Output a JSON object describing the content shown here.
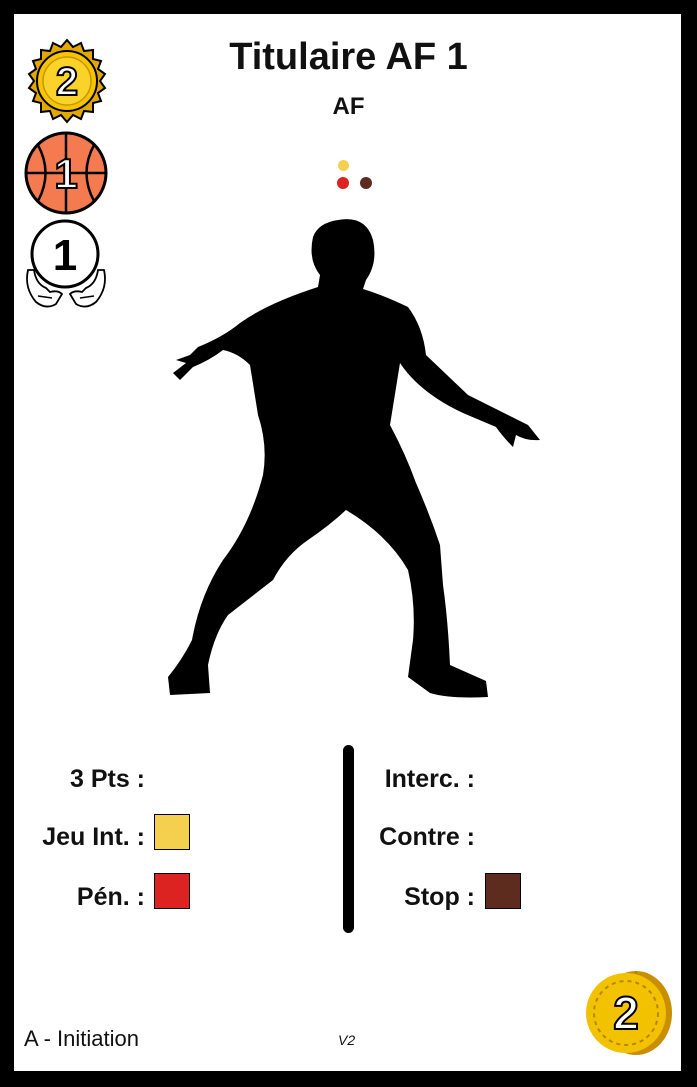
{
  "card": {
    "title": "Titulaire AF 1",
    "subtitle": "AF"
  },
  "badges": {
    "cost_value": "2",
    "shot_value": "1",
    "hands_value": "1",
    "coin_value": "2"
  },
  "colors": {
    "yellow": "#f5d04e",
    "red": "#dd2222",
    "brown": "#5e2c1e",
    "gold": "#f2c200",
    "ball_orange": "#f47a50"
  },
  "stats": {
    "left": [
      {
        "label": "3 Pts :",
        "color": ""
      },
      {
        "label": "Jeu Int. :",
        "color": "#f5d04e"
      },
      {
        "label": "Pén. :",
        "color": "#dd2222"
      }
    ],
    "right": [
      {
        "label": "Interc. :",
        "color": ""
      },
      {
        "label": "Contre :",
        "color": ""
      },
      {
        "label": "Stop :",
        "color": "#5e2c1e"
      }
    ]
  },
  "footer": {
    "level": "A - Initiation",
    "version": "V2"
  }
}
